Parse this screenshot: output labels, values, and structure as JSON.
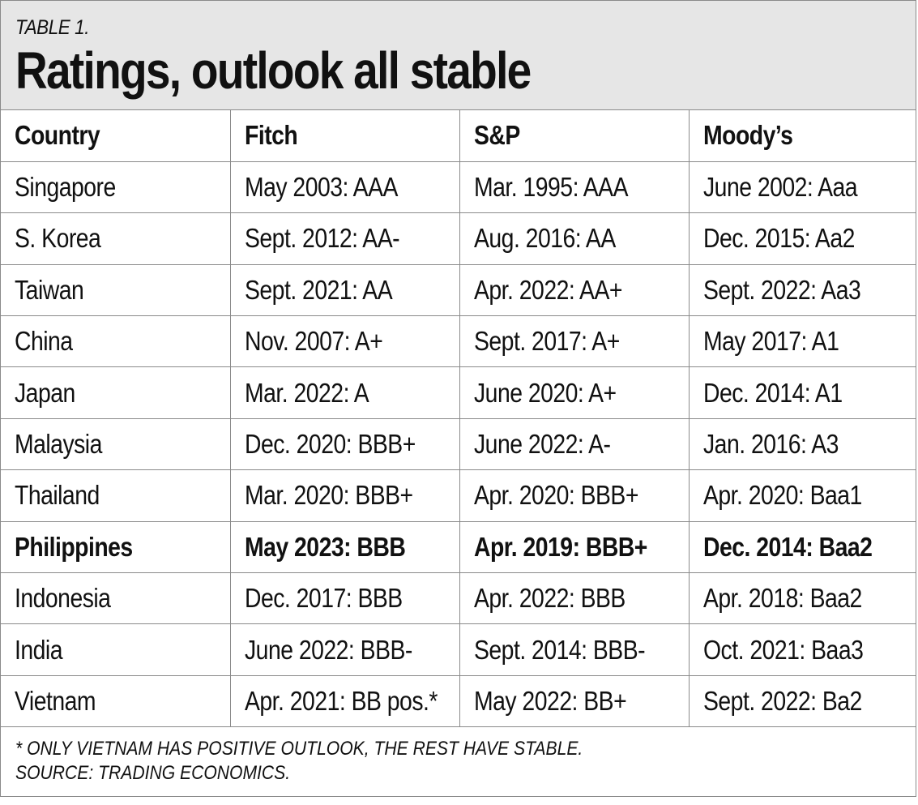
{
  "header": {
    "table_label": "TABLE 1.",
    "title": "Ratings, outlook all stable"
  },
  "table": {
    "columns": [
      "Country",
      "Fitch",
      "S&P",
      "Moody’s"
    ],
    "rows": [
      {
        "cells": [
          "Singapore",
          "May 2003: AAA",
          "Mar. 1995: AAA",
          "June 2002: Aaa"
        ],
        "bold": false
      },
      {
        "cells": [
          "S. Korea",
          "Sept. 2012: AA-",
          "Aug. 2016: AA",
          "Dec. 2015: Aa2"
        ],
        "bold": false
      },
      {
        "cells": [
          "Taiwan",
          "Sept. 2021: AA",
          "Apr. 2022: AA+",
          "Sept. 2022: Aa3"
        ],
        "bold": false
      },
      {
        "cells": [
          "China",
          "Nov. 2007: A+",
          "Sept. 2017: A+",
          "May 2017: A1"
        ],
        "bold": false
      },
      {
        "cells": [
          "Japan",
          "Mar. 2022: A",
          "June 2020: A+",
          "Dec. 2014: A1"
        ],
        "bold": false
      },
      {
        "cells": [
          "Malaysia",
          "Dec. 2020: BBB+",
          "June 2022: A-",
          "Jan. 2016: A3"
        ],
        "bold": false
      },
      {
        "cells": [
          "Thailand",
          "Mar. 2020: BBB+",
          "Apr. 2020: BBB+",
          "Apr. 2020: Baa1"
        ],
        "bold": false
      },
      {
        "cells": [
          "Philippines",
          "May 2023: BBB",
          "Apr. 2019: BBB+",
          "Dec. 2014: Baa2"
        ],
        "bold": true
      },
      {
        "cells": [
          "Indonesia",
          "Dec. 2017: BBB",
          "Apr. 2022: BBB",
          "Apr. 2018: Baa2"
        ],
        "bold": false
      },
      {
        "cells": [
          "India",
          "June 2022: BBB-",
          "Sept. 2014: BBB-",
          "Oct. 2021: Baa3"
        ],
        "bold": false
      },
      {
        "cells": [
          "Vietnam",
          "Apr. 2021: BB pos.*",
          "May 2022: BB+",
          "Sept. 2022: Ba2"
        ],
        "bold": false
      }
    ]
  },
  "footer": {
    "note": "* ONLY VIETNAM HAS POSITIVE OUTLOOK, THE REST HAVE STABLE.",
    "source": "SOURCE: TRADING ECONOMICS."
  },
  "colors": {
    "header_background": "#e6e6e6",
    "border": "#8a8a8a",
    "text": "#111111"
  }
}
